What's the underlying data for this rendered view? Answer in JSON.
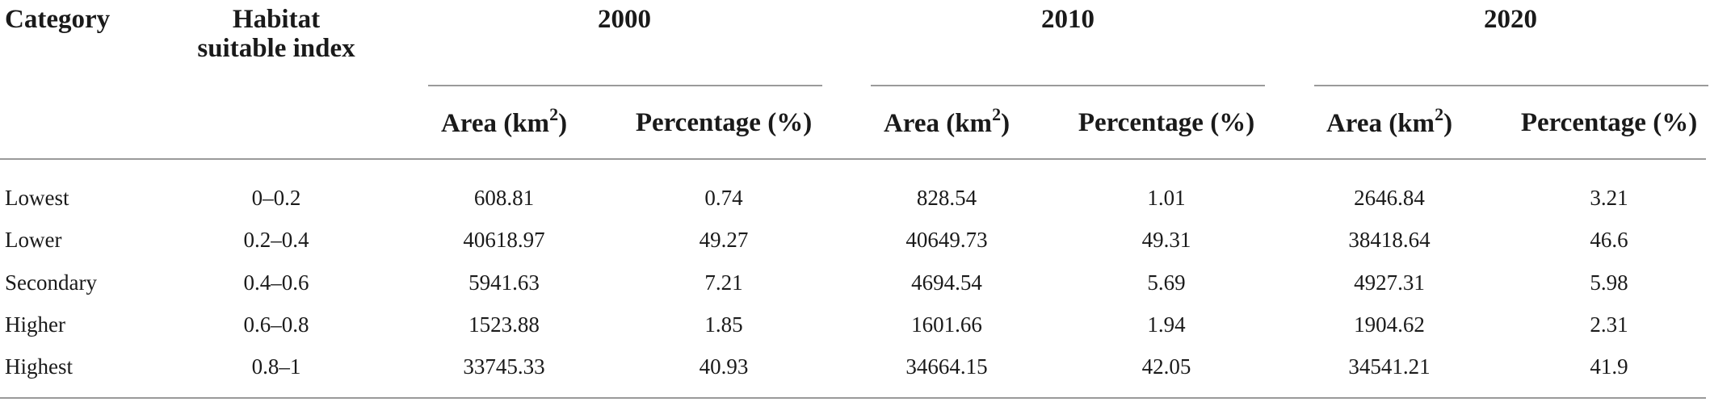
{
  "table": {
    "headers": {
      "category": "Category",
      "hsi_line1": "Habitat",
      "hsi_line2": "suitable index",
      "years": [
        "2000",
        "2010",
        "2020"
      ],
      "area_label": "Area (km",
      "area_sup": "2",
      "area_close": ")",
      "percentage_label": "Percentage (%)"
    },
    "rows": [
      {
        "category": "Lowest",
        "hsi": "0–0.2",
        "values": [
          "608.81",
          "0.74",
          "828.54",
          "1.01",
          "2646.84",
          "3.21"
        ]
      },
      {
        "category": "Lower",
        "hsi": "0.2–0.4",
        "values": [
          "40618.97",
          "49.27",
          "40649.73",
          "49.31",
          "38418.64",
          "46.6"
        ]
      },
      {
        "category": "Secondary",
        "hsi": "0.4–0.6",
        "values": [
          "5941.63",
          "7.21",
          "4694.54",
          "5.69",
          "4927.31",
          "5.98"
        ]
      },
      {
        "category": "Higher",
        "hsi": "0.6–0.8",
        "values": [
          "1523.88",
          "1.85",
          "1601.66",
          "1.94",
          "1904.62",
          "2.31"
        ]
      },
      {
        "category": "Highest",
        "hsi": "0.8–1",
        "values": [
          "33745.33",
          "40.93",
          "34664.15",
          "42.05",
          "34541.21",
          "41.9"
        ]
      }
    ]
  }
}
